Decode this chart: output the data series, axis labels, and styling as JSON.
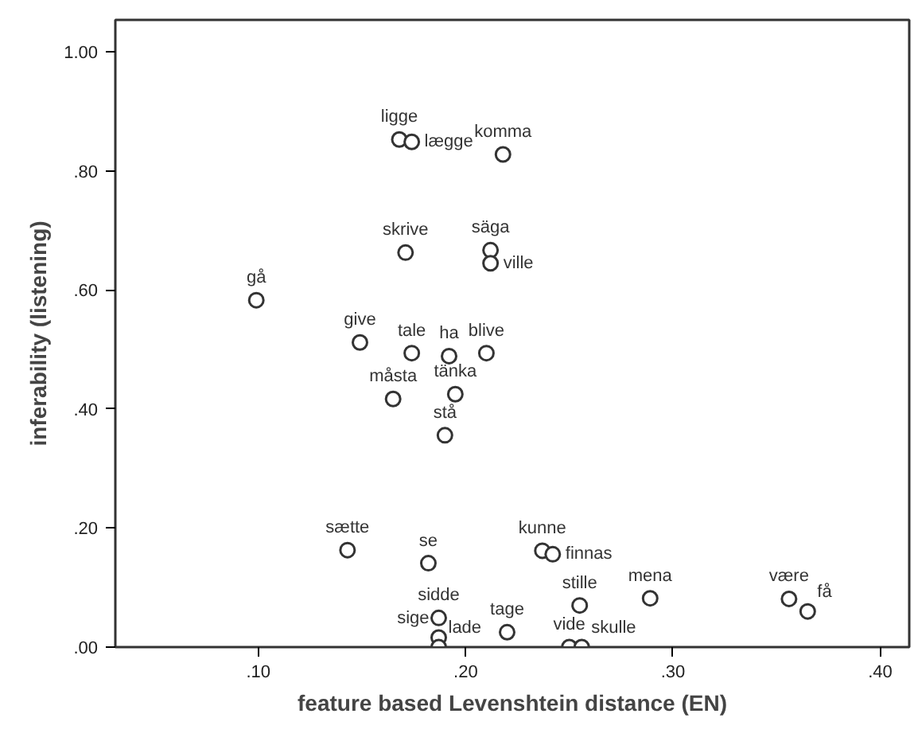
{
  "chart_data": {
    "type": "scatter",
    "xlabel": "feature based Levenshtein distance (EN)",
    "ylabel": "inferability (listening)",
    "xlim": [
      0.031,
      0.414
    ],
    "ylim": [
      0,
      1.054
    ],
    "xticks": [
      {
        "value": 0.1,
        "label": ".10"
      },
      {
        "value": 0.2,
        "label": ".20"
      },
      {
        "value": 0.3,
        "label": ".30"
      },
      {
        "value": 0.4,
        "label": ".40"
      }
    ],
    "yticks": [
      {
        "value": 0,
        "label": ".00"
      },
      {
        "value": 0.2,
        "label": ".20"
      },
      {
        "value": 0.4,
        "label": ".40"
      },
      {
        "value": 0.6,
        "label": ".60"
      },
      {
        "value": 0.8,
        "label": ".80"
      },
      {
        "value": 1.0,
        "label": "1.00"
      }
    ],
    "grid": false,
    "marker": "circle",
    "series": [
      {
        "color": "#333333",
        "x": [
          0.168,
          0.174,
          0.218,
          0.171,
          0.212,
          0.212,
          0.099,
          0.149,
          0.174,
          0.192,
          0.21,
          0.165,
          0.195,
          0.19,
          0.143,
          0.182,
          0.237,
          0.242,
          0.255,
          0.289,
          0.356,
          0.365,
          0.187,
          0.187,
          0.187,
          0.22,
          0.25,
          0.256
        ],
        "values": [
          0.853,
          0.849,
          0.828,
          0.663,
          0.667,
          0.645,
          0.583,
          0.512,
          0.494,
          0.489,
          0.494,
          0.417,
          0.425,
          0.356,
          0.163,
          0.141,
          0.162,
          0.156,
          0.07,
          0.082,
          0.081,
          0.06,
          0.049,
          0.016,
          0.0,
          0.025,
          0.0,
          0.0
        ]
      }
    ],
    "annotations": [
      {
        "text": "ligge",
        "x": 0.168,
        "y": 0.853
      },
      {
        "text": "lægge",
        "x": 0.174,
        "y": 0.849
      },
      {
        "text": "komma",
        "x": 0.218,
        "y": 0.828
      },
      {
        "text": "skrive",
        "x": 0.171,
        "y": 0.663
      },
      {
        "text": "säga",
        "x": 0.212,
        "y": 0.667
      },
      {
        "text": "ville",
        "x": 0.212,
        "y": 0.645
      },
      {
        "text": "gå",
        "x": 0.099,
        "y": 0.583
      },
      {
        "text": "give",
        "x": 0.149,
        "y": 0.512
      },
      {
        "text": "tale",
        "x": 0.174,
        "y": 0.494
      },
      {
        "text": "ha",
        "x": 0.192,
        "y": 0.489
      },
      {
        "text": "blive",
        "x": 0.21,
        "y": 0.494
      },
      {
        "text": "måsta",
        "x": 0.165,
        "y": 0.417
      },
      {
        "text": "tänka",
        "x": 0.195,
        "y": 0.425
      },
      {
        "text": "stå",
        "x": 0.19,
        "y": 0.356
      },
      {
        "text": "sætte",
        "x": 0.143,
        "y": 0.163
      },
      {
        "text": "se",
        "x": 0.182,
        "y": 0.141
      },
      {
        "text": "kunne",
        "x": 0.237,
        "y": 0.162
      },
      {
        "text": "finnas",
        "x": 0.242,
        "y": 0.156
      },
      {
        "text": "stille",
        "x": 0.255,
        "y": 0.07
      },
      {
        "text": "mena",
        "x": 0.289,
        "y": 0.082
      },
      {
        "text": "være",
        "x": 0.356,
        "y": 0.081
      },
      {
        "text": "få",
        "x": 0.365,
        "y": 0.06
      },
      {
        "text": "sidde",
        "x": 0.187,
        "y": 0.049
      },
      {
        "text": "sige",
        "x": 0.187,
        "y": 0.016
      },
      {
        "text": "lade",
        "x": 0.187,
        "y": 0.0
      },
      {
        "text": "tage",
        "x": 0.22,
        "y": 0.025
      },
      {
        "text": "vide",
        "x": 0.25,
        "y": 0.0
      },
      {
        "text": "skulle",
        "x": 0.256,
        "y": 0.0
      }
    ]
  }
}
